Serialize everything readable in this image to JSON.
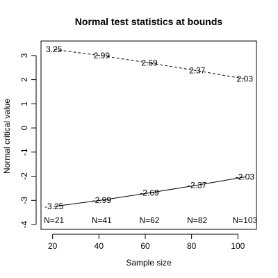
{
  "chart_data": {
    "type": "line",
    "title": "Normal test statistics at bounds",
    "xlabel": "Sample size",
    "ylabel": "Normal critical value",
    "xlim": [
      15,
      108
    ],
    "ylim": [
      -4.2,
      3.6
    ],
    "x_ticks": [
      20,
      40,
      60,
      80,
      100
    ],
    "y_ticks": [
      3,
      2,
      1,
      0,
      -1,
      -2,
      -3,
      -4
    ],
    "x": [
      20.6,
      41.2,
      61.8,
      82.4,
      103
    ],
    "series": [
      {
        "values": [
          3.25,
          2.99,
          2.69,
          2.37,
          2.03
        ],
        "labels": [
          "3.25",
          "2.99",
          "2.69",
          "2.37",
          "2.03"
        ],
        "line_style": "dashed"
      },
      {
        "values": [
          -3.25,
          -2.99,
          -2.69,
          -2.37,
          -2.03
        ],
        "labels": [
          "-3.25",
          "-2.99",
          "-2.69",
          "-2.37",
          "-2.03"
        ],
        "line_style": "solid"
      }
    ],
    "sample_size_labels": [
      "N=21",
      "N=41",
      "N=62",
      "N=82",
      "N=103"
    ],
    "grid": false,
    "legend": "none"
  }
}
